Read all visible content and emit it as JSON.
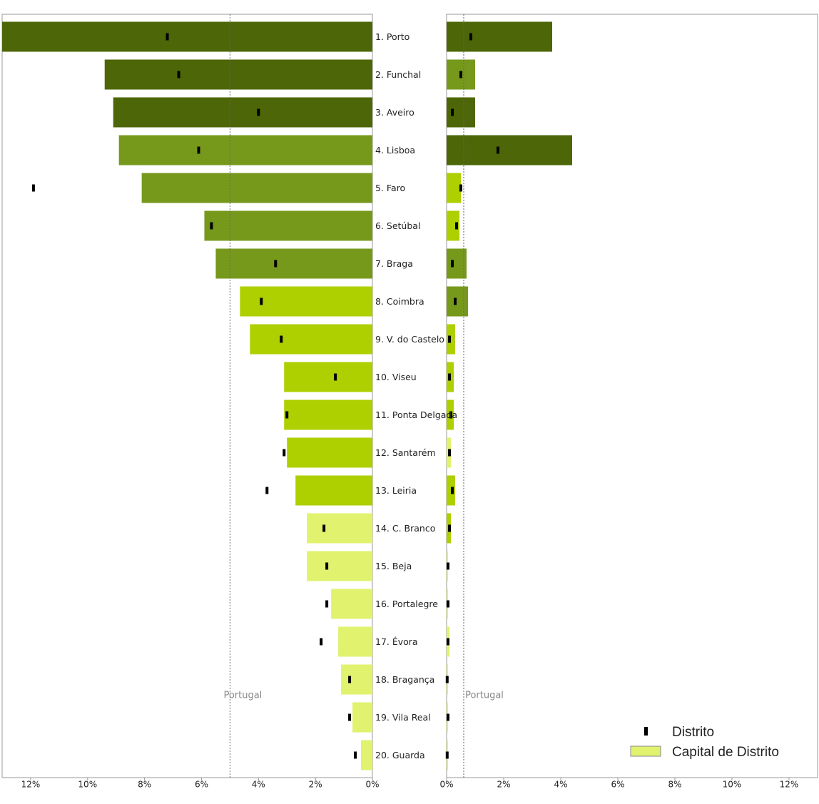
{
  "chart_data": [
    {
      "type": "bar",
      "categories": [
        "1. Porto",
        "2. Funchal",
        "3. Aveiro",
        "4. Lisboa",
        "5. Faro",
        "6. Setúbal",
        "7. Braga",
        "8. Coimbra",
        "9. V. do Castelo",
        "10. Viseu",
        "11. Ponta Delgada",
        "12. Santarém",
        "13. Leiria",
        "14. C. Branco",
        "15. Beja",
        "16. Portalegre",
        "17. Évora",
        "18. Bragança",
        "19. Vila Real",
        "20. Guarda"
      ],
      "xlim": [
        13,
        0
      ],
      "xticks": [
        {
          "value": 12,
          "label": "12%"
        },
        {
          "value": 10,
          "label": "10%"
        },
        {
          "value": 8,
          "label": "8%"
        },
        {
          "value": 6,
          "label": "6%"
        },
        {
          "value": 4,
          "label": "4%"
        },
        {
          "value": 2,
          "label": "2%"
        },
        {
          "value": 0,
          "label": "0%"
        }
      ],
      "reference_line": {
        "label": "Portugal",
        "value": 5.0
      },
      "series": [
        {
          "color": "#e0f26e",
          "colors": [
            "#4d6607",
            "#4d6607",
            "#4d6607",
            "#76991c",
            "#76991c",
            "#76991c",
            "#76991c",
            "#aecf00",
            "#aecf00",
            "#aecf00",
            "#aecf00",
            "#aecf00",
            "#aecf00",
            "#e0f26e",
            "#e0f26e",
            "#e0f26e",
            "#e0f26e",
            "#e0f26e",
            "#e0f26e",
            "#e0f26e"
          ],
          "values": [
            13.0,
            9.4,
            9.1,
            8.9,
            8.1,
            5.9,
            5.5,
            4.65,
            4.3,
            3.1,
            3.1,
            3.0,
            2.7,
            2.3,
            2.3,
            1.45,
            1.2,
            1.1,
            0.7,
            0.4
          ]
        },
        {
          "color": "#000000",
          "values": [
            7.2,
            6.8,
            4.0,
            6.1,
            11.9,
            5.65,
            3.4,
            3.9,
            3.2,
            1.3,
            3.0,
            3.1,
            3.7,
            1.7,
            1.6,
            1.6,
            1.8,
            0.8,
            0.8,
            0.6
          ]
        }
      ]
    },
    {
      "type": "bar",
      "xlim": [
        0,
        13
      ],
      "xticks": [
        {
          "value": 0,
          "label": "0%"
        },
        {
          "value": 2,
          "label": "2%"
        },
        {
          "value": 4,
          "label": "4%"
        },
        {
          "value": 6,
          "label": "6%"
        },
        {
          "value": 8,
          "label": "8%"
        },
        {
          "value": 10,
          "label": "10%"
        },
        {
          "value": 12,
          "label": "12%"
        }
      ],
      "reference_line": {
        "label": "Portugal",
        "value": 0.6
      },
      "legend": "lower right",
      "series": [
        {
          "name": "Capital de Distrito",
          "color": "#e0f26e",
          "colors": [
            "#4d6607",
            "#76991c",
            "#4d6607",
            "#4d6607",
            "#aecf00",
            "#aecf00",
            "#76991c",
            "#76991c",
            "#aecf00",
            "#aecf00",
            "#aecf00",
            "#e0f26e",
            "#aecf00",
            "#aecf00",
            "#e0f26e",
            "#e0f26e",
            "#e0f26e",
            "#e0f26e",
            "#e0f26e",
            "#e0f26e"
          ],
          "values": [
            3.7,
            1.0,
            1.0,
            4.4,
            0.5,
            0.45,
            0.7,
            0.75,
            0.3,
            0.25,
            0.25,
            0.15,
            0.3,
            0.15,
            0.05,
            0.05,
            0.1,
            0.05,
            0.05,
            0.05
          ]
        },
        {
          "name": "Distrito",
          "color": "#000000",
          "values": [
            0.85,
            0.5,
            0.2,
            1.8,
            0.5,
            0.35,
            0.2,
            0.3,
            0.1,
            0.1,
            0.15,
            0.1,
            0.2,
            0.1,
            0.05,
            0.05,
            0.05,
            0.02,
            0.05,
            0.02
          ]
        }
      ]
    }
  ]
}
